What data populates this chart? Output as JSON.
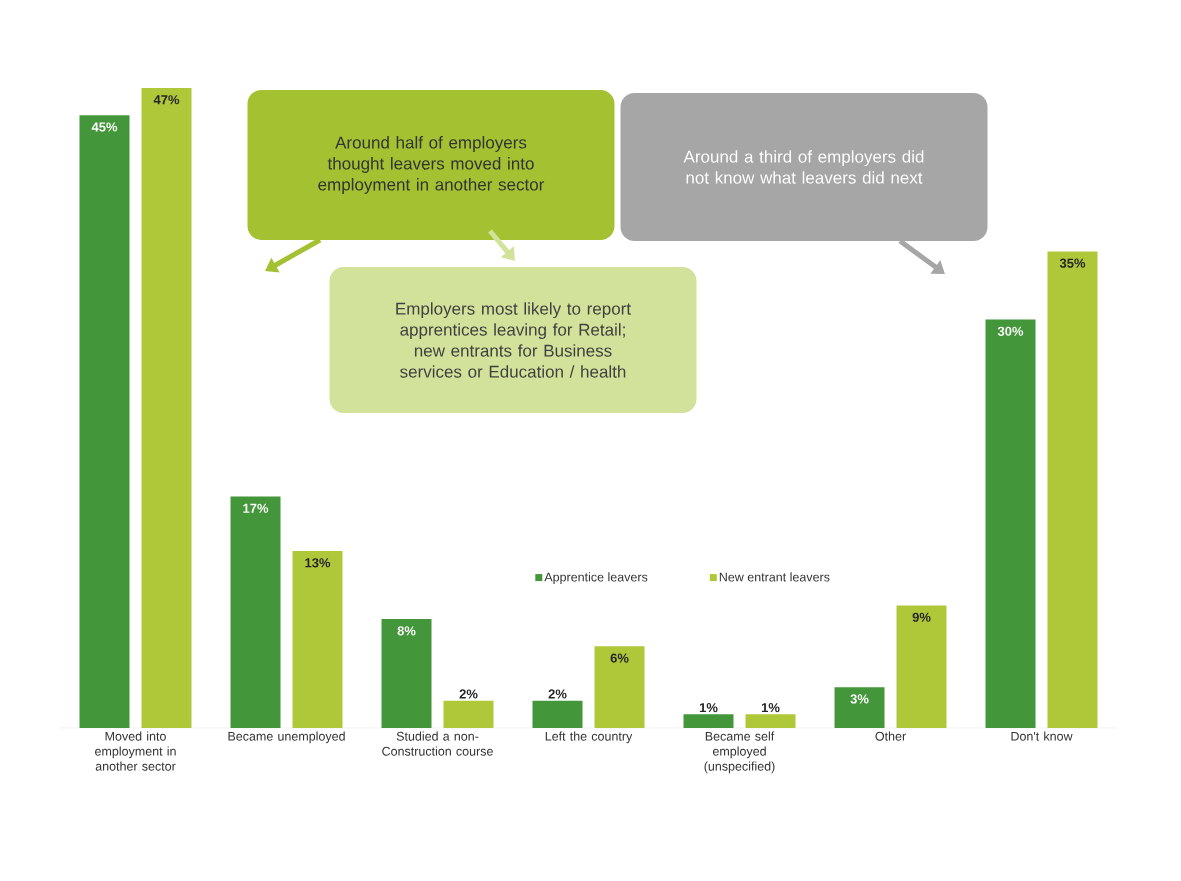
{
  "chart_data": {
    "type": "bar",
    "categories": [
      "Moved into employment in another sector",
      "Became unemployed",
      "Studied a non-Construction course",
      "Left the country",
      "Became self employed (unspecified)",
      "Other",
      "Don't know"
    ],
    "series": [
      {
        "name": "Apprentice leavers",
        "color": "#43963a",
        "values": [
          45,
          17,
          8,
          2,
          1,
          3,
          30
        ],
        "value_labels": [
          "45%",
          "17%",
          "8%",
          "2%",
          "1%",
          "3%",
          "30%"
        ]
      },
      {
        "name": "New entrant leavers",
        "color": "#afc83a",
        "values": [
          47,
          13,
          2,
          6,
          1,
          9,
          35
        ],
        "value_labels": [
          "47%",
          "13%",
          "2%",
          "6%",
          "1%",
          "9%",
          "35%"
        ]
      }
    ],
    "ylim": [
      0,
      47
    ],
    "legend": "center",
    "annotations": [
      "Around half of employers thought leavers moved into employment in another sector",
      "Employers most likely to report apprentices leaving for Retail; new entrants for Business services or Education / health",
      "Around a third of employers did not know what leavers did next"
    ]
  }
}
